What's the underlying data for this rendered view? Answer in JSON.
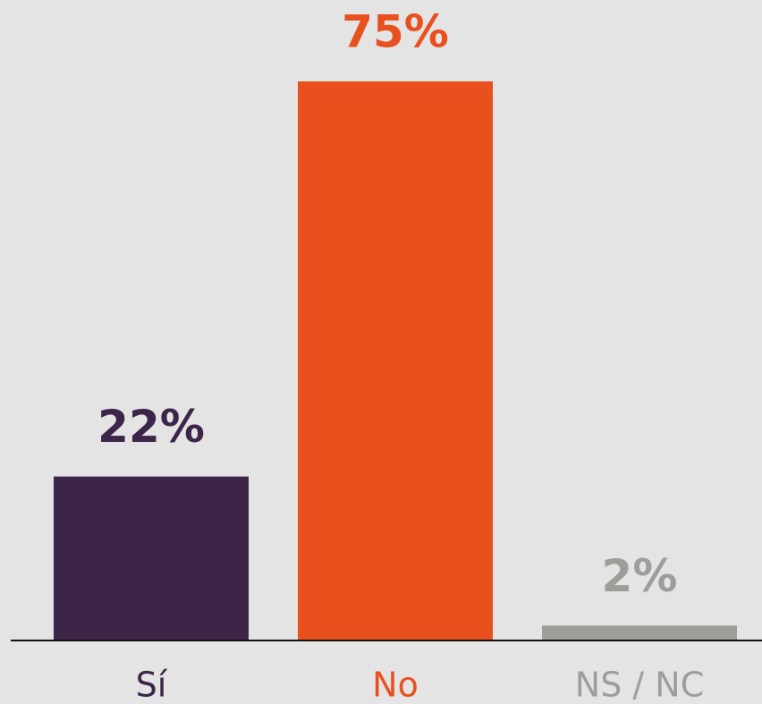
{
  "chart_data": {
    "type": "bar",
    "categories": [
      "Sí",
      "No",
      "NS / NC"
    ],
    "values": [
      22,
      75,
      2
    ],
    "value_labels": [
      "22%",
      "75%",
      "2%"
    ],
    "colors": [
      "#3c2549",
      "#e8501e",
      "#9d9d9a"
    ]
  }
}
